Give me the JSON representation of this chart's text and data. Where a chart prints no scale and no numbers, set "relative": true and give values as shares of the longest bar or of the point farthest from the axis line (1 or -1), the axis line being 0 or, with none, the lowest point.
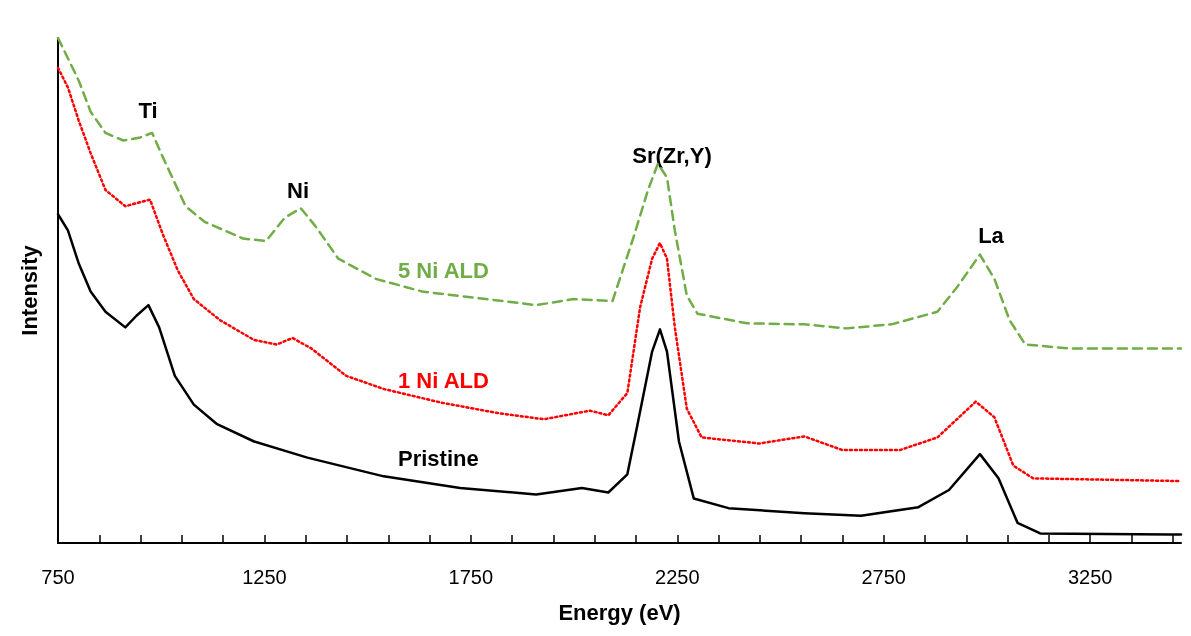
{
  "chart_data": {
    "type": "line",
    "xlabel": "Energy (eV)",
    "ylabel": "Intensity",
    "relative": true,
    "xlim": [
      750,
      3470
    ],
    "xticks": [
      750,
      {
        "value": 850,
        "label": null
      },
      {
        "value": 950,
        "label": null
      },
      {
        "value": 1050,
        "label": null
      },
      {
        "value": 1150,
        "label": null
      },
      1250,
      {
        "value": 1350,
        "label": null
      },
      {
        "value": 1450,
        "label": null
      },
      {
        "value": 1550,
        "label": null
      },
      {
        "value": 1650,
        "label": null
      },
      1750,
      {
        "value": 1850,
        "label": null
      },
      {
        "value": 1950,
        "label": null
      },
      {
        "value": 2050,
        "label": null
      },
      {
        "value": 2150,
        "label": null
      },
      2250,
      {
        "value": 2350,
        "label": null
      },
      {
        "value": 2450,
        "label": null
      },
      {
        "value": 2550,
        "label": null
      },
      {
        "value": 2650,
        "label": null
      },
      2750,
      {
        "value": 2850,
        "label": null
      },
      {
        "value": 2950,
        "label": null
      },
      {
        "value": 3050,
        "label": null
      },
      {
        "value": 3150,
        "label": null
      },
      3250,
      {
        "value": 3350,
        "label": null
      },
      {
        "value": 3450,
        "label": null
      }
    ],
    "grid": false,
    "marker": "none",
    "annotations": [
      "Ti",
      "Ni",
      "Sr(Zr,Y)",
      "La"
    ],
    "series": [
      {
        "name": "Pristine",
        "color": "#000000",
        "line_style": "solid",
        "x": [
          750,
          774,
          800,
          829,
          865,
          913,
          940,
          969,
          995,
          1033,
          1079,
          1134,
          1225,
          1354,
          1539,
          1724,
          1908,
          2019,
          2083,
          2129,
          2153,
          2189,
          2208,
          2225,
          2254,
          2290,
          2374,
          2558,
          2695,
          2834,
          2908,
          2983,
          3028,
          3074,
          3129,
          3443,
          3470
        ],
        "values": [
          0.651,
          0.619,
          0.554,
          0.498,
          0.458,
          0.427,
          0.45,
          0.471,
          0.427,
          0.331,
          0.274,
          0.236,
          0.201,
          0.169,
          0.132,
          0.109,
          0.096,
          0.109,
          0.1,
          0.136,
          0.232,
          0.379,
          0.423,
          0.379,
          0.201,
          0.088,
          0.069,
          0.059,
          0.054,
          0.071,
          0.105,
          0.176,
          0.128,
          0.04,
          0.019,
          0.017,
          0.017
        ]
      },
      {
        "name": "1 Ni ALD",
        "color": "#ff0000",
        "line_style": "dotted",
        "x": [
          750,
          774,
          800,
          829,
          865,
          913,
          973,
          1004,
          1040,
          1079,
          1143,
          1225,
          1280,
          1318,
          1364,
          1448,
          1539,
          1678,
          1817,
          1927,
          2038,
          2083,
          2129,
          2160,
          2189,
          2208,
          2225,
          2244,
          2273,
          2309,
          2448,
          2558,
          2650,
          2789,
          2880,
          2973,
          3018,
          3064,
          3112,
          3443,
          3470
        ],
        "values": [
          0.941,
          0.902,
          0.837,
          0.772,
          0.699,
          0.667,
          0.68,
          0.611,
          0.54,
          0.483,
          0.441,
          0.402,
          0.393,
          0.406,
          0.385,
          0.331,
          0.305,
          0.278,
          0.257,
          0.245,
          0.262,
          0.253,
          0.297,
          0.467,
          0.563,
          0.594,
          0.563,
          0.427,
          0.266,
          0.209,
          0.197,
          0.211,
          0.184,
          0.184,
          0.209,
          0.28,
          0.249,
          0.153,
          0.128,
          0.123,
          0.123
        ]
      },
      {
        "name": "5 Ni ALD",
        "color": "#70ad47",
        "line_style": "dashed",
        "x": [
          750,
          774,
          800,
          829,
          865,
          908,
          949,
          978,
          1004,
          1059,
          1105,
          1198,
          1254,
          1299,
          1338,
          1373,
          1429,
          1520,
          1632,
          1788,
          1908,
          1999,
          2093,
          2143,
          2179,
          2203,
          2225,
          2244,
          2273,
          2299,
          2419,
          2558,
          2659,
          2769,
          2880,
          2927,
          2983,
          3018,
          3055,
          3093,
          3203,
          3443,
          3470
        ],
        "values": [
          1.0,
          0.96,
          0.916,
          0.854,
          0.812,
          0.797,
          0.803,
          0.812,
          0.764,
          0.667,
          0.636,
          0.603,
          0.598,
          0.644,
          0.663,
          0.628,
          0.563,
          0.523,
          0.498,
          0.483,
          0.471,
          0.483,
          0.479,
          0.603,
          0.699,
          0.751,
          0.724,
          0.619,
          0.49,
          0.454,
          0.435,
          0.433,
          0.425,
          0.433,
          0.458,
          0.506,
          0.571,
          0.523,
          0.441,
          0.393,
          0.385,
          0.385,
          0.385
        ]
      }
    ]
  }
}
